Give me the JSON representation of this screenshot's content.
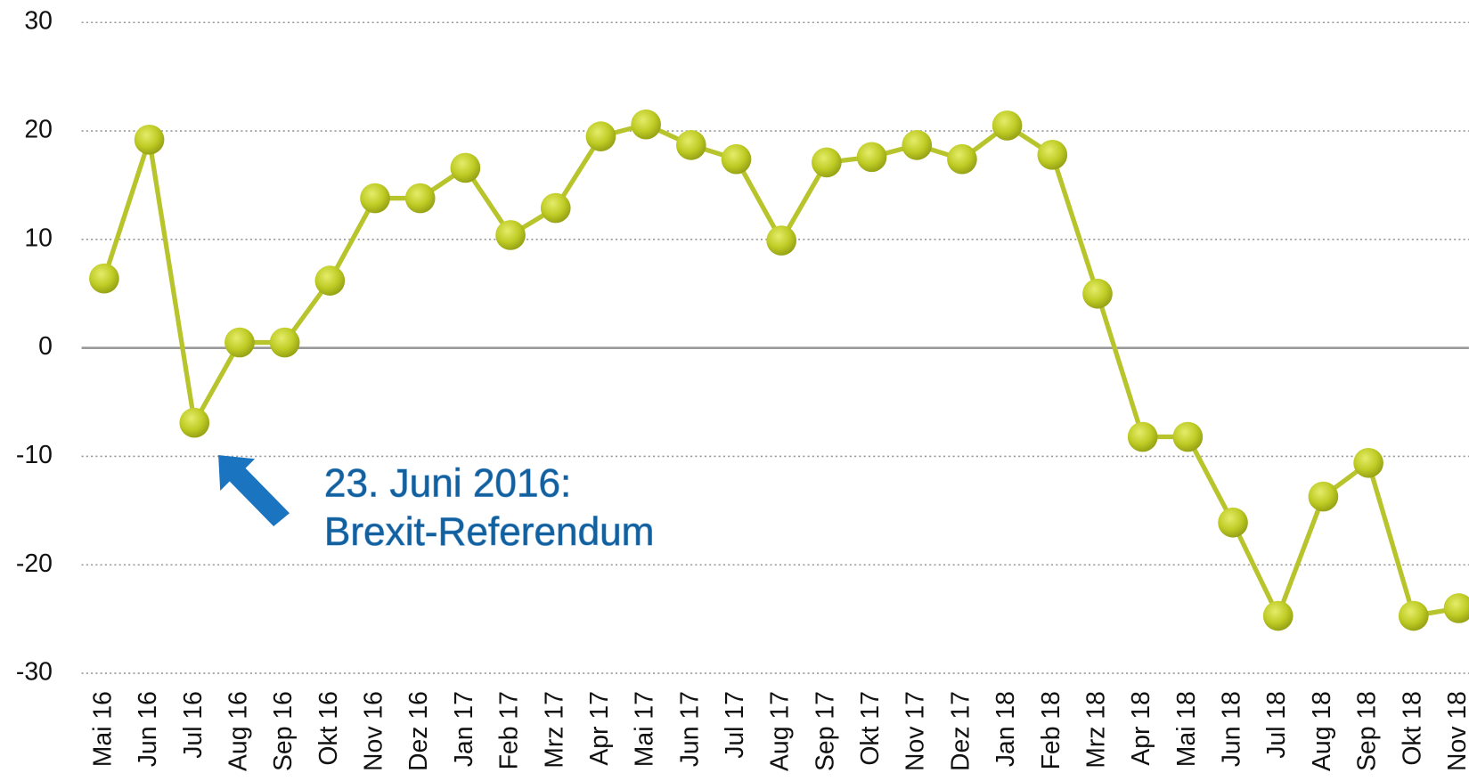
{
  "chart_data": {
    "type": "line",
    "categories": [
      "Mai 16",
      "Jun 16",
      "Jul 16",
      "Aug 16",
      "Sep 16",
      "Okt 16",
      "Nov 16",
      "Dez 16",
      "Jan 17",
      "Feb 17",
      "Mrz 17",
      "Apr 17",
      "Mai 17",
      "Jun 17",
      "Jul 17",
      "Aug 17",
      "Sep 17",
      "Okt 17",
      "Nov 17",
      "Dez 17",
      "Jan 18",
      "Feb 18",
      "Mrz 18",
      "Apr 18",
      "Mai 18",
      "Jun 18",
      "Jul 18",
      "Aug 18",
      "Sep 18",
      "Okt 18",
      "Nov 18"
    ],
    "series": [
      {
        "color": "#b8c42c",
        "values": [
          6.4,
          19.2,
          -6.9,
          0.5,
          0.5,
          6.2,
          13.8,
          13.8,
          16.6,
          10.4,
          12.9,
          19.5,
          20.6,
          18.7,
          17.4,
          9.9,
          17.1,
          17.6,
          18.7,
          17.4,
          20.5,
          17.8,
          5.0,
          -8.2,
          -8.2,
          -16.1,
          -24.7,
          -13.7,
          -10.6,
          -24.7,
          -24.0
        ]
      }
    ],
    "ylim": [
      -30,
      30
    ],
    "yticks": [
      -30,
      -20,
      -10,
      0,
      10,
      20,
      30
    ],
    "grid": true,
    "annotation": [
      "23. Juni 2016:",
      "Brexit-Referendum"
    ]
  }
}
